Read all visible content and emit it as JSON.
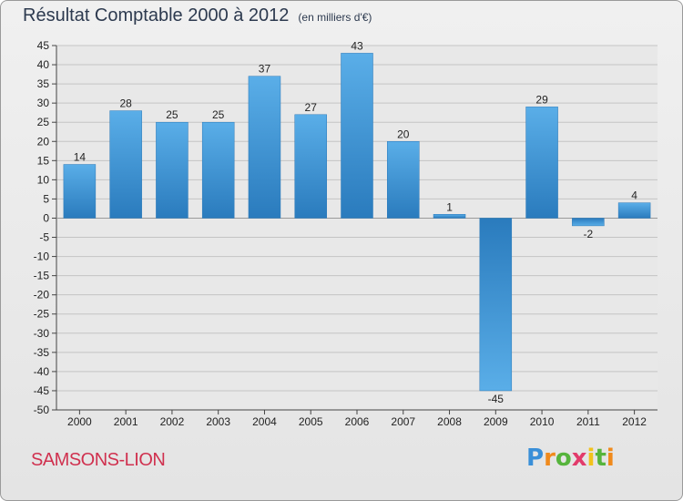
{
  "title": "Résultat Comptable 2000 à 2012",
  "subtitle": "(en milliers d'€)",
  "place_name": "SAMSONS-LION",
  "logo": {
    "text": "Proxiti",
    "colors": [
      "#3a8fd8",
      "#f08a1c",
      "#56b43c",
      "#e23b6b",
      "#f2c21c"
    ]
  },
  "colors": {
    "bar_light": "#5aaee8",
    "bar_dark": "#2a7bbd",
    "grid": "#c4c4c4",
    "place": "#d0314f"
  },
  "chart_data": {
    "type": "bar",
    "title": "Résultat Comptable 2000 à 2012",
    "subtitle": "(en milliers d'€)",
    "xlabel": "",
    "ylabel": "",
    "categories": [
      "2000",
      "2001",
      "2002",
      "2003",
      "2004",
      "2005",
      "2006",
      "2007",
      "2008",
      "2009",
      "2010",
      "2011",
      "2012"
    ],
    "values": [
      14,
      28,
      25,
      25,
      37,
      27,
      43,
      20,
      1,
      -45,
      29,
      -2,
      4
    ],
    "ylim": [
      -50,
      45
    ],
    "yticks": [
      45,
      40,
      35,
      30,
      25,
      20,
      15,
      10,
      5,
      0,
      -5,
      -10,
      -15,
      -20,
      -25,
      -30,
      -35,
      -40,
      -45,
      -50
    ],
    "grid": true,
    "legend": "none"
  }
}
